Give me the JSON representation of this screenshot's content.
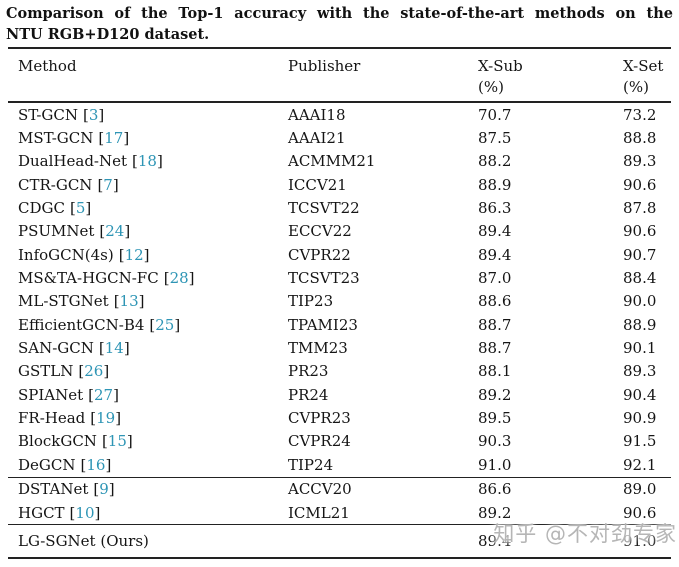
{
  "caption": {
    "line1": "Comparison of the Top-1 accuracy with the state-of-the-art methods on the",
    "line2": "NTU RGB+D120 dataset."
  },
  "table": {
    "headers": {
      "method": "Method",
      "publisher": "Publisher",
      "xsub": "X-Sub",
      "xset": "X-Set",
      "unit": "(%)"
    },
    "cite_open": "[",
    "cite_close": "]",
    "sections": [
      {
        "rows": [
          {
            "method": "ST-GCN",
            "cite": "3",
            "publisher": "AAAI18",
            "xsub": "70.7",
            "xset": "73.2"
          },
          {
            "method": "MST-GCN",
            "cite": "17",
            "publisher": "AAAI21",
            "xsub": "87.5",
            "xset": "88.8"
          },
          {
            "method": "DualHead-Net",
            "cite": "18",
            "publisher": "ACMMM21",
            "xsub": "88.2",
            "xset": "89.3"
          },
          {
            "method": "CTR-GCN",
            "cite": "7",
            "publisher": "ICCV21",
            "xsub": "88.9",
            "xset": "90.6"
          },
          {
            "method": "CDGC",
            "cite": "5",
            "publisher": "TCSVT22",
            "xsub": "86.3",
            "xset": "87.8"
          },
          {
            "method": "PSUMNet",
            "cite": "24",
            "publisher": "ECCV22",
            "xsub": "89.4",
            "xset": "90.6"
          },
          {
            "method": "InfoGCN(4s)",
            "cite": "12",
            "publisher": "CVPR22",
            "xsub": "89.4",
            "xset": "90.7"
          },
          {
            "method": "MS&TA-HGCN-FC",
            "cite": "28",
            "publisher": "TCSVT23",
            "xsub": "87.0",
            "xset": "88.4"
          },
          {
            "method": "ML-STGNet",
            "cite": "13",
            "publisher": "TIP23",
            "xsub": "88.6",
            "xset": "90.0"
          },
          {
            "method": "EfficientGCN-B4",
            "cite": "25",
            "publisher": "TPAMI23",
            "xsub": "88.7",
            "xset": "88.9"
          },
          {
            "method": "SAN-GCN",
            "cite": "14",
            "publisher": "TMM23",
            "xsub": "88.7",
            "xset": "90.1"
          },
          {
            "method": "GSTLN",
            "cite": "26",
            "publisher": "PR23",
            "xsub": "88.1",
            "xset": "89.3"
          },
          {
            "method": "SPIANet",
            "cite": "27",
            "publisher": "PR24",
            "xsub": "89.2",
            "xset": "90.4"
          },
          {
            "method": "FR-Head",
            "cite": "19",
            "publisher": "CVPR23",
            "xsub": "89.5",
            "xset": "90.9"
          },
          {
            "method": "BlockGCN",
            "cite": "15",
            "publisher": "CVPR24",
            "xsub": "90.3",
            "xset": "91.5"
          },
          {
            "method": "DeGCN",
            "cite": "16",
            "publisher": "TIP24",
            "xsub": "91.0",
            "xset": "92.1"
          }
        ]
      },
      {
        "rows": [
          {
            "method": "DSTANet",
            "cite": "9",
            "publisher": "ACCV20",
            "xsub": "86.6",
            "xset": "89.0"
          },
          {
            "method": "HGCT",
            "cite": "10",
            "publisher": "ICML21",
            "xsub": "89.2",
            "xset": "90.6"
          }
        ]
      },
      {
        "rows": [
          {
            "method": "LG-SGNet (Ours)",
            "cite": null,
            "publisher": "",
            "xsub": "89.4",
            "xset": "91.0"
          }
        ]
      }
    ]
  },
  "watermark": {
    "text": "知乎 @不对劲专家"
  },
  "colors": {
    "citation": "#2e95b5",
    "text": "#151515",
    "rule": "#222222",
    "watermark": "#b2b2b2"
  }
}
